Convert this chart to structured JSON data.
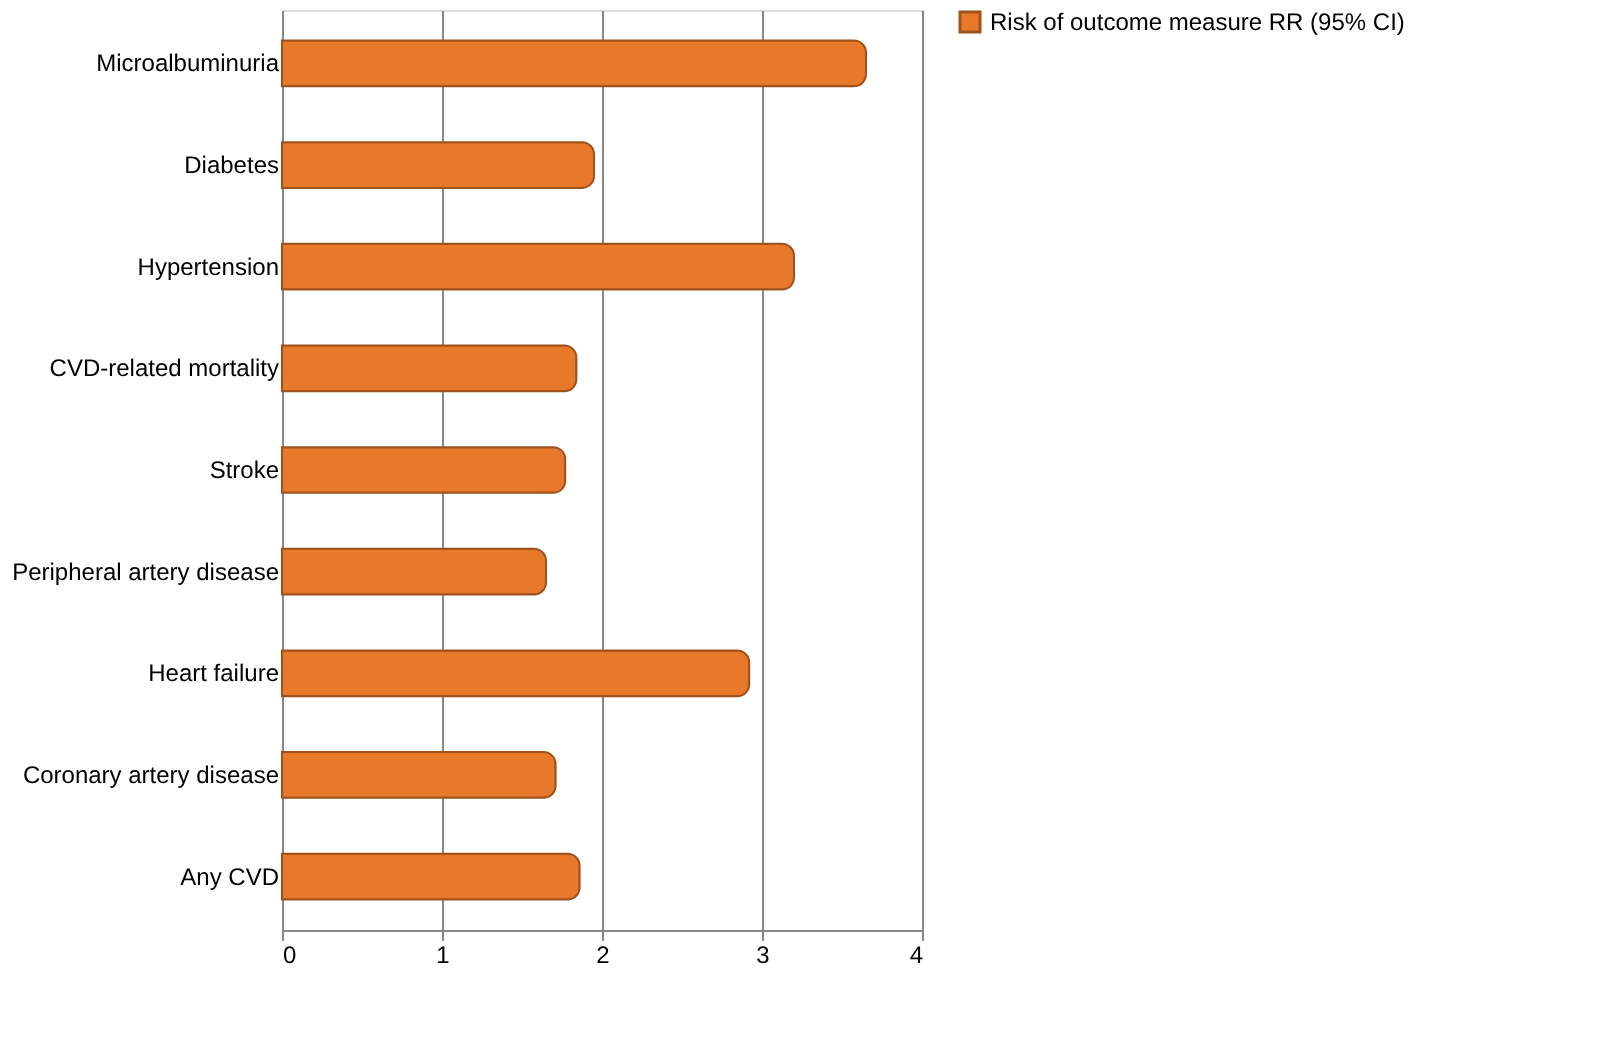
{
  "chart_data": {
    "type": "bar",
    "orientation": "horizontal",
    "categories": [
      "Microalbuminuria",
      "Diabetes",
      "Hypertension",
      "CVD-related mortality",
      "Stroke",
      "Peripheral artery disease",
      "Heart failure",
      "Coronary artery disease",
      "Any CVD"
    ],
    "series": [
      {
        "name": "Risk of outcome measure RR (95% CI)",
        "color": "#e8782a",
        "values": [
          3.65,
          1.95,
          3.2,
          1.84,
          1.77,
          1.65,
          2.92,
          1.71,
          1.86
        ]
      }
    ],
    "xlim": [
      0,
      4
    ],
    "xticks": [
      0,
      1,
      2,
      3,
      4
    ],
    "grid": "x",
    "legend": "right"
  }
}
